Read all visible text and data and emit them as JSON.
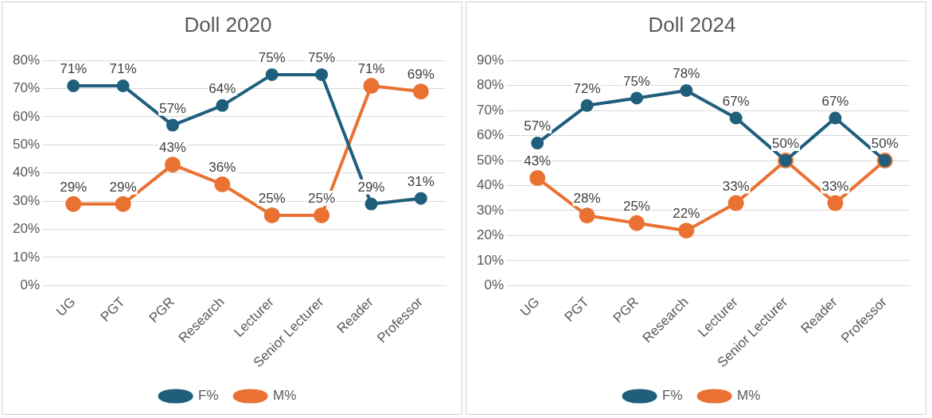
{
  "chart_data": [
    {
      "type": "line",
      "title": "Doll 2020",
      "categories": [
        "UG",
        "PGT",
        "PGR",
        "Research",
        "Lecturer",
        "Senior Lecturer",
        "Reader",
        "Professor"
      ],
      "series": [
        {
          "name": "F%",
          "color": "#1f5f7c",
          "values": [
            71,
            71,
            57,
            64,
            75,
            75,
            29,
            31
          ],
          "value_labels": [
            "71%",
            "71%",
            "57%",
            "64%",
            "75%",
            "75%",
            "29%",
            "31%"
          ]
        },
        {
          "name": "M%",
          "color": "#e97132",
          "values": [
            29,
            29,
            43,
            36,
            25,
            25,
            71,
            69
          ],
          "value_labels": [
            "29%",
            "29%",
            "43%",
            "36%",
            "25%",
            "25%",
            "71%",
            "69%"
          ]
        }
      ],
      "ylim": [
        0,
        80
      ],
      "yticks": [
        {
          "value": 0,
          "label": "0%"
        },
        {
          "value": 10,
          "label": "10%"
        },
        {
          "value": 20,
          "label": "20%"
        },
        {
          "value": 30,
          "label": "30%"
        },
        {
          "value": 40,
          "label": "40%"
        },
        {
          "value": 50,
          "label": "50%"
        },
        {
          "value": 60,
          "label": "60%"
        },
        {
          "value": 70,
          "label": "70%"
        },
        {
          "value": 80,
          "label": "80%"
        }
      ],
      "grid": "y",
      "legend": "bottom",
      "marker": "circle",
      "line_style": "solid"
    },
    {
      "type": "line",
      "title": "Doll 2024",
      "categories": [
        "UG",
        "PGT",
        "PGR",
        "Research",
        "Lecturer",
        "Senior Lecturer",
        "Reader",
        "Professor"
      ],
      "series": [
        {
          "name": "F%",
          "color": "#1f5f7c",
          "values": [
            57,
            72,
            75,
            78,
            67,
            50,
            67,
            50
          ],
          "value_labels": [
            "57%",
            "72%",
            "75%",
            "78%",
            "67%",
            "50%",
            "67%",
            "50%"
          ]
        },
        {
          "name": "M%",
          "color": "#e97132",
          "values": [
            43,
            28,
            25,
            22,
            33,
            50,
            33,
            50
          ],
          "value_labels": [
            "43%",
            "28%",
            "25%",
            "22%",
            "33%",
            null,
            "33%",
            null
          ]
        }
      ],
      "ylim": [
        0,
        90
      ],
      "yticks": [
        {
          "value": 0,
          "label": "0%"
        },
        {
          "value": 10,
          "label": "10%"
        },
        {
          "value": 20,
          "label": "20%"
        },
        {
          "value": 30,
          "label": "30%"
        },
        {
          "value": 40,
          "label": "40%"
        },
        {
          "value": 50,
          "label": "50%"
        },
        {
          "value": 60,
          "label": "60%"
        },
        {
          "value": 70,
          "label": "70%"
        },
        {
          "value": 80,
          "label": "80%"
        },
        {
          "value": 90,
          "label": "90%"
        }
      ],
      "grid": "y",
      "legend": "bottom",
      "marker": "circle",
      "line_style": "solid"
    }
  ]
}
